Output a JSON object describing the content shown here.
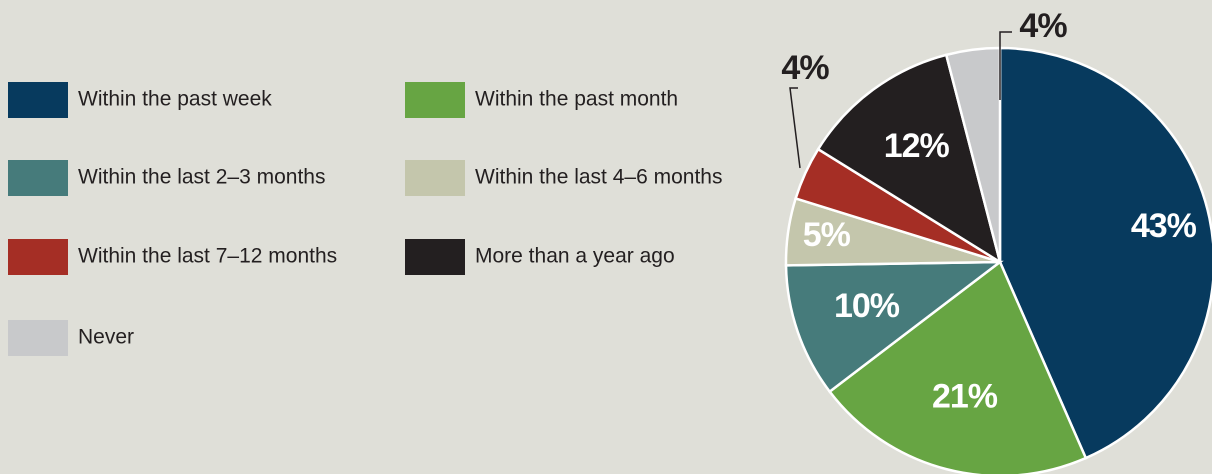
{
  "chart_data": {
    "type": "pie",
    "categories": [
      "Within the past week",
      "Within the past month",
      "Within the last 2–3 months",
      "Within the last 4–6 months",
      "Within the last 7–12 months",
      "More than a year ago",
      "Never"
    ],
    "values": [
      43,
      21,
      10,
      5,
      4,
      12,
      4
    ],
    "value_labels": [
      "43%",
      "21%",
      "10%",
      "5%",
      "4%",
      "12%",
      "4%"
    ],
    "colors": [
      "#073a5e",
      "#67a543",
      "#467b7b",
      "#c4c6ac",
      "#a52e25",
      "#231f20",
      "#c8c9cb"
    ],
    "legend": "left"
  }
}
